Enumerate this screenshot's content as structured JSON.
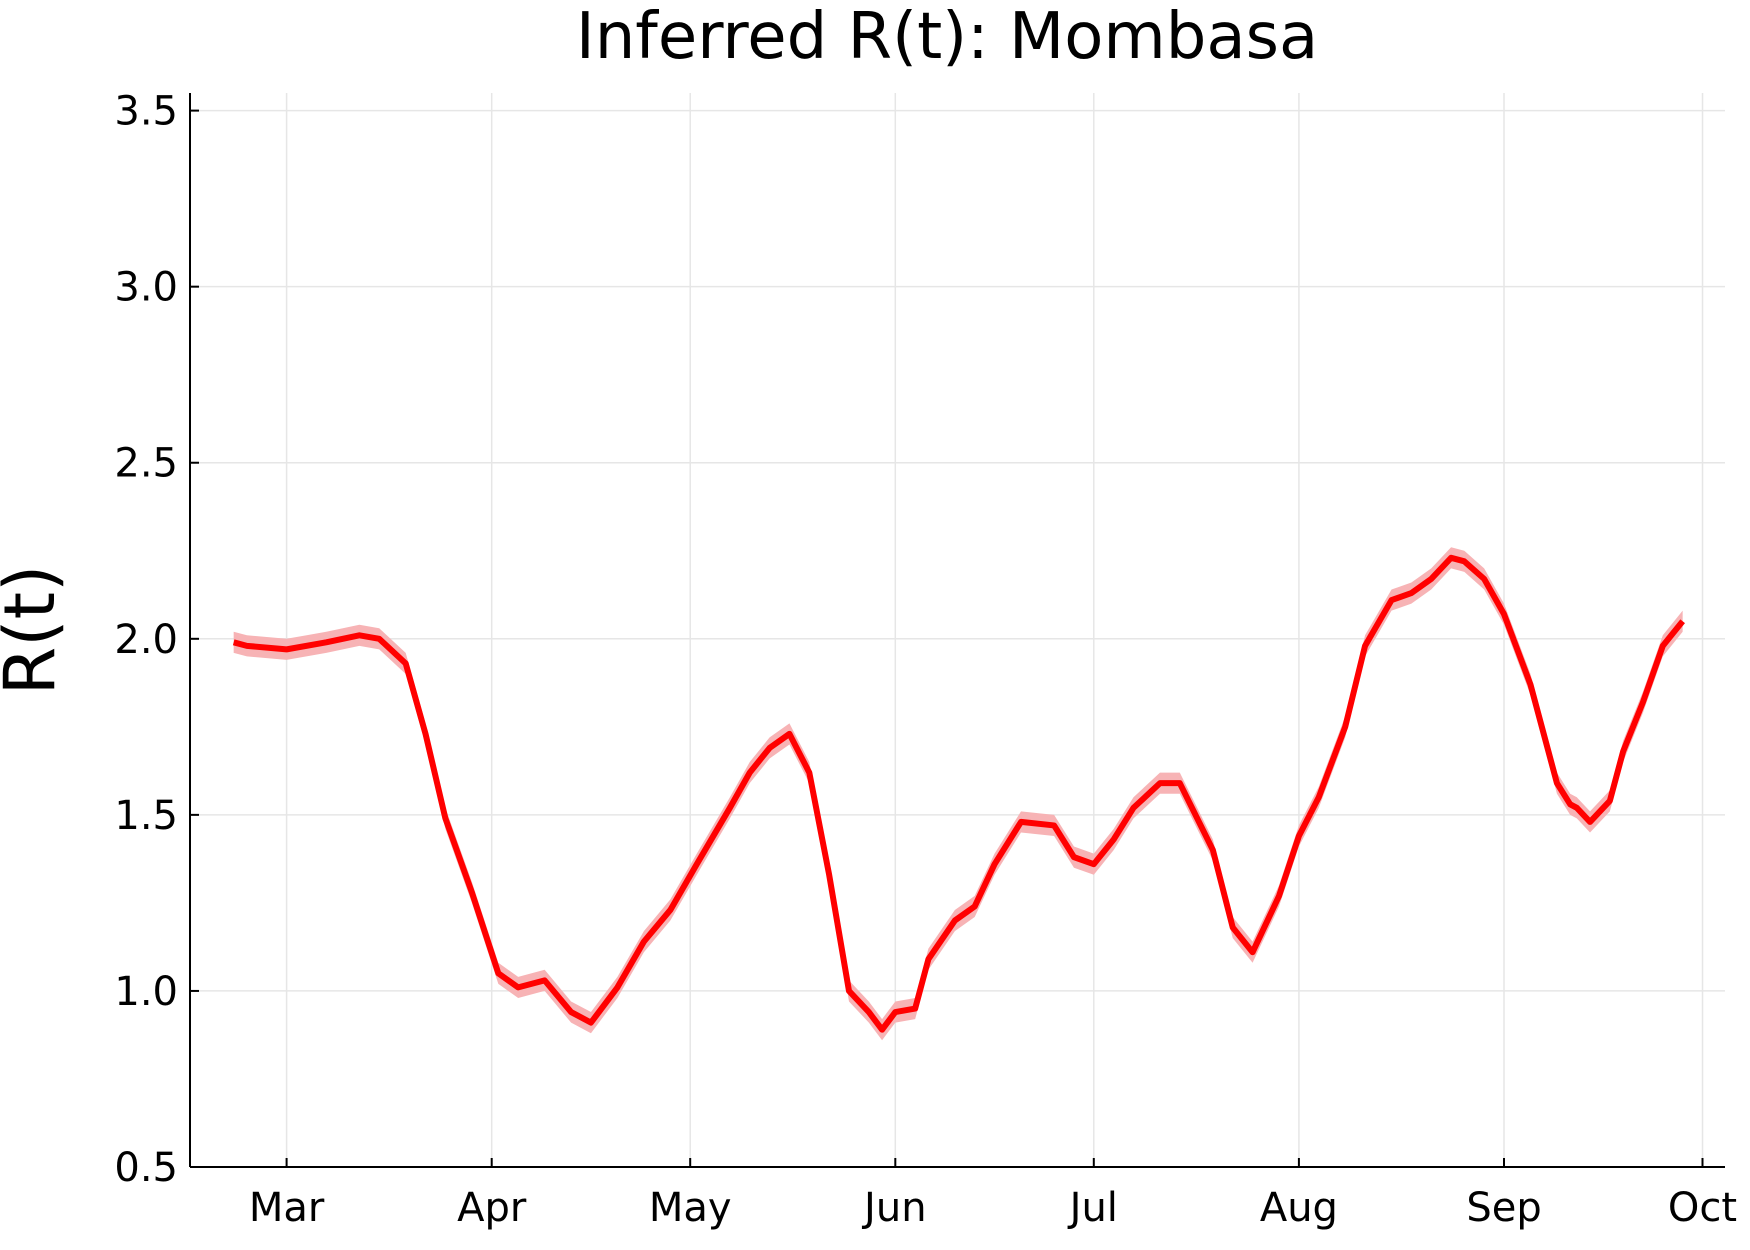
{
  "chart_data": {
    "type": "line",
    "title": "Inferred R(t): Mombasa",
    "y_label": "R(t)",
    "x": [
      -8,
      -6,
      0,
      6,
      11,
      14,
      18,
      21,
      24,
      28,
      32,
      35,
      39,
      43,
      46,
      50,
      54,
      58,
      62,
      67,
      70,
      73,
      76,
      79,
      82,
      85,
      88,
      90,
      92,
      95,
      97,
      101,
      104,
      107,
      111,
      116,
      119,
      122,
      125,
      128,
      132,
      135,
      140,
      143,
      146,
      150,
      153,
      156,
      160,
      163,
      167,
      170,
      173,
      176,
      178,
      181,
      184,
      188,
      192,
      194,
      195,
      197,
      200,
      202,
      205,
      208,
      211
    ],
    "series": [
      {
        "color": "#ff0000",
        "band_color": "#f7b3b5",
        "values": [
          1.99,
          1.98,
          1.97,
          1.99,
          2.01,
          2.0,
          1.93,
          1.73,
          1.49,
          1.28,
          1.05,
          1.01,
          1.03,
          0.94,
          0.91,
          1.01,
          1.14,
          1.23,
          1.36,
          1.52,
          1.62,
          1.69,
          1.73,
          1.62,
          1.33,
          1.0,
          0.94,
          0.89,
          0.94,
          0.95,
          1.09,
          1.2,
          1.24,
          1.36,
          1.48,
          1.47,
          1.38,
          1.36,
          1.43,
          1.52,
          1.59,
          1.59,
          1.4,
          1.18,
          1.11,
          1.27,
          1.44,
          1.55,
          1.75,
          1.98,
          2.11,
          2.13,
          2.17,
          2.23,
          2.22,
          2.17,
          2.07,
          1.87,
          1.59,
          1.53,
          1.52,
          1.48,
          1.54,
          1.68,
          1.82,
          1.98,
          2.05
        ],
        "lower": [
          1.96,
          1.95,
          1.94,
          1.96,
          1.98,
          1.97,
          1.9,
          1.7,
          1.46,
          1.25,
          1.02,
          0.98,
          1.0,
          0.91,
          0.88,
          0.98,
          1.11,
          1.2,
          1.33,
          1.49,
          1.59,
          1.66,
          1.7,
          1.59,
          1.3,
          0.97,
          0.91,
          0.86,
          0.91,
          0.92,
          1.06,
          1.17,
          1.21,
          1.33,
          1.45,
          1.44,
          1.35,
          1.33,
          1.4,
          1.49,
          1.56,
          1.56,
          1.37,
          1.15,
          1.08,
          1.24,
          1.41,
          1.52,
          1.72,
          1.95,
          2.08,
          2.1,
          2.14,
          2.2,
          2.19,
          2.14,
          2.04,
          1.84,
          1.56,
          1.5,
          1.49,
          1.45,
          1.51,
          1.65,
          1.79,
          1.95,
          2.02
        ],
        "upper": [
          2.02,
          2.01,
          2.0,
          2.02,
          2.04,
          2.03,
          1.96,
          1.76,
          1.52,
          1.31,
          1.08,
          1.04,
          1.06,
          0.97,
          0.94,
          1.04,
          1.17,
          1.26,
          1.39,
          1.55,
          1.65,
          1.72,
          1.76,
          1.65,
          1.36,
          1.03,
          0.97,
          0.92,
          0.97,
          0.98,
          1.12,
          1.23,
          1.27,
          1.39,
          1.51,
          1.5,
          1.41,
          1.39,
          1.46,
          1.55,
          1.62,
          1.62,
          1.43,
          1.21,
          1.14,
          1.3,
          1.47,
          1.58,
          1.78,
          2.01,
          2.14,
          2.16,
          2.2,
          2.26,
          2.25,
          2.2,
          2.1,
          1.9,
          1.62,
          1.56,
          1.55,
          1.51,
          1.57,
          1.71,
          1.85,
          2.01,
          2.08
        ]
      }
    ],
    "xlim": [
      -14.6,
      217.4
    ],
    "xticks": [
      {
        "value": 0,
        "label": "Mar"
      },
      {
        "value": 31,
        "label": "Apr"
      },
      {
        "value": 61,
        "label": "May"
      },
      {
        "value": 92,
        "label": "Jun"
      },
      {
        "value": 122,
        "label": "Jul"
      },
      {
        "value": 153,
        "label": "Aug"
      },
      {
        "value": 184,
        "label": "Sep"
      },
      {
        "value": 214,
        "label": "Oct"
      }
    ],
    "ylim": [
      0.5,
      3.55
    ],
    "yticks": [
      0.5,
      {
        "value": 1,
        "label": "1.0"
      },
      1.5,
      {
        "value": 2,
        "label": "2.0"
      },
      2.5,
      {
        "value": 3,
        "label": "3.0"
      },
      3.5
    ],
    "grid": true
  }
}
